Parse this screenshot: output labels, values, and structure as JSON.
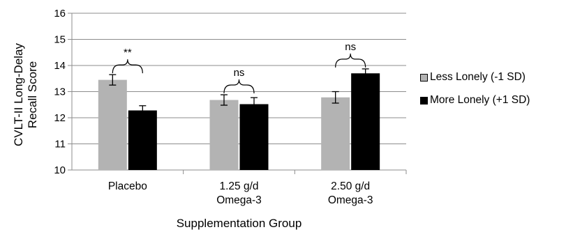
{
  "chart_data": {
    "type": "bar",
    "categories": [
      [
        "Placebo"
      ],
      [
        "1.25 g/d",
        "Omega-3"
      ],
      [
        "2.50 g/d",
        "Omega-3"
      ]
    ],
    "series": [
      {
        "name": "Less Lonely (-1 SD)",
        "color": "#b3b3b3",
        "values": [
          13.45,
          12.68,
          12.78
        ],
        "error": [
          0.2,
          0.2,
          0.22
        ]
      },
      {
        "name": "More Lonely (+1 SD)",
        "color": "#000000",
        "values": [
          12.28,
          12.52,
          13.7
        ],
        "error": [
          0.18,
          0.25,
          0.17
        ]
      }
    ],
    "annotations": [
      "**",
      "ns",
      "ns"
    ],
    "title": "",
    "xlabel": "Supplementation Group",
    "ylabel": [
      "CVLT-II Long-Delay",
      "Recall Score"
    ],
    "ylim": [
      10,
      16
    ],
    "yticks": [
      10,
      11,
      12,
      13,
      14,
      15,
      16
    ],
    "grid": true,
    "legend_position": "right"
  }
}
